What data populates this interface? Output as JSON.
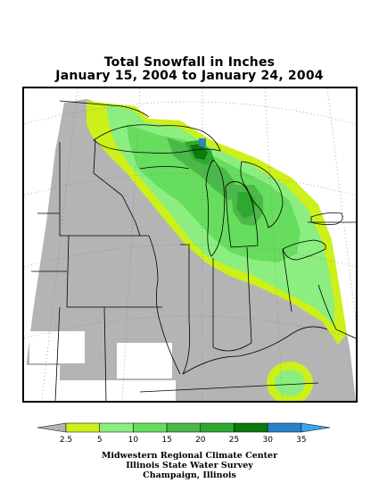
{
  "title": {
    "line1": "Total Snowfall in Inches",
    "line2": "January 15, 2004 to January 24, 2004"
  },
  "legend": {
    "bins": [
      {
        "color": "#b4b4b4"
      },
      {
        "color": "#ccf01a"
      },
      {
        "color": "#8cee80"
      },
      {
        "color": "#66dd5e"
      },
      {
        "color": "#4cb84a"
      },
      {
        "color": "#2ea82e"
      },
      {
        "color": "#0a7a0a"
      },
      {
        "color": "#2a82c8"
      },
      {
        "color": "#3aa6ee"
      }
    ],
    "tick_labels": [
      "2.5",
      "5",
      "10",
      "15",
      "20",
      "25",
      "30",
      "35"
    ]
  },
  "credits": {
    "line1": "Midwestern Regional Climate Center",
    "line2": "Illinois State Water Survey",
    "line3": "Champaign, Illinois"
  },
  "colors": {
    "no_data": "#ffffff",
    "under_2_5": "#b4b4b4",
    "c2_5_5": "#ccf01a",
    "c5_10": "#8cee80",
    "c10_15": "#66dd5e",
    "c15_20": "#4cb84a",
    "c20_25": "#2ea82e",
    "c25_30": "#0a7a0a",
    "c30_35": "#2a82c8"
  }
}
